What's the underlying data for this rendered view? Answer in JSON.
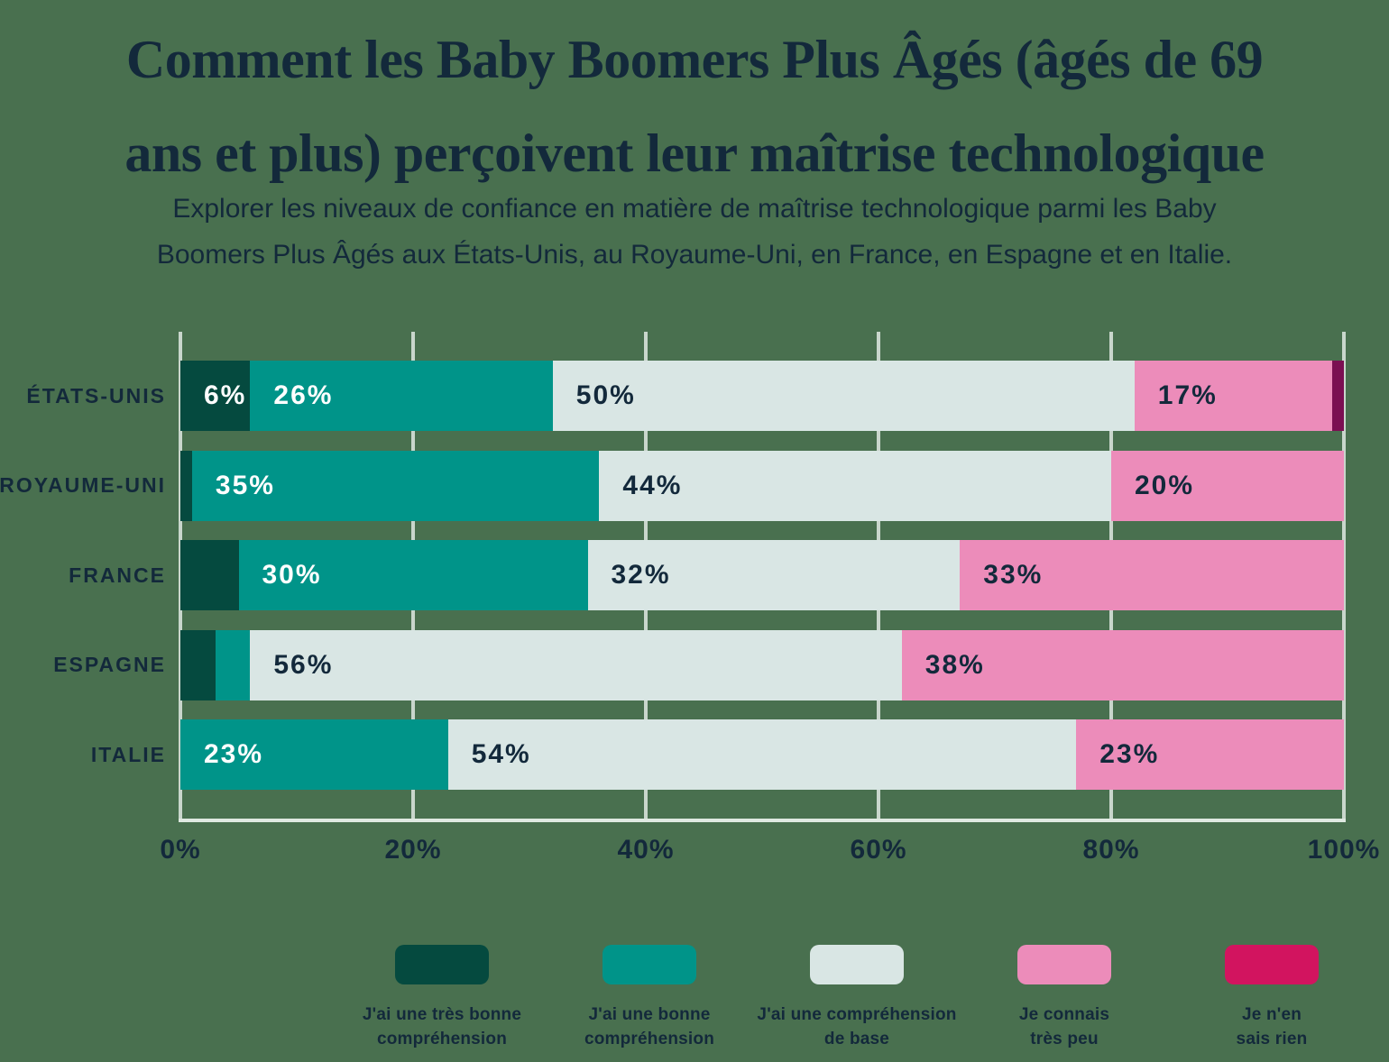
{
  "page": {
    "background_color": "#49704F",
    "text_color": "#13293B",
    "gridline_color": "#C9D6CC",
    "axis_line_color": "#DFE9E1"
  },
  "header": {
    "title": "Comment les Baby Boomers Plus Âgés (âgés de 69\nans et plus) perçoivent leur maîtrise technologique",
    "subtitle": "Explorer les niveaux de confiance en matière de maîtrise technologique parmi les Baby\nBoomers Plus Âgés aux États-Unis, au Royaume-Uni, en France, en Espagne et en Italie."
  },
  "chart_data": {
    "type": "bar",
    "orientation": "horizontal",
    "stacked": true,
    "title": "Comment les Baby Boomers Plus Âgés (âgés de 69 ans et plus) perçoivent leur maîtrise technologique",
    "xlabel": "",
    "ylabel": "",
    "xlim": [
      0,
      100
    ],
    "grid": true,
    "legend_position": "bottom",
    "categories": [
      "ÉTATS-UNIS",
      "ROYAUME-UNI",
      "FRANCE",
      "ESPAGNE",
      "ITALIE"
    ],
    "x_ticks": [
      "0%",
      "20%",
      "40%",
      "60%",
      "80%",
      "100%"
    ],
    "series": [
      {
        "name": "J'ai une très bonne compréhension",
        "color": "#054A3F",
        "label_color": "#FFFFFF",
        "values": [
          6,
          1,
          5,
          3,
          0
        ],
        "labels": [
          "6%",
          "",
          "",
          "",
          ""
        ]
      },
      {
        "name": "J'ai une bonne compréhension",
        "color": "#009489",
        "label_color": "#FFFFFF",
        "values": [
          26,
          35,
          30,
          3,
          23
        ],
        "labels": [
          "26%",
          "35%",
          "30%",
          "",
          "23%"
        ]
      },
      {
        "name": "J'ai une compréhension de base",
        "color": "#D9E6E4",
        "label_color": "#13293B",
        "values": [
          50,
          44,
          32,
          56,
          54
        ],
        "labels": [
          "50%",
          "44%",
          "32%",
          "56%",
          "54%"
        ]
      },
      {
        "name": "Je connais très peu",
        "color": "#EC8CBA",
        "label_color": "#13293B",
        "values": [
          17,
          20,
          33,
          38,
          23
        ],
        "labels": [
          "17%",
          "20%",
          "33%",
          "38%",
          "23%"
        ]
      },
      {
        "name": "Je n'en sais rien",
        "color": "#7B0F52",
        "label_color": "#FFFFFF",
        "values": [
          1,
          0,
          0,
          0,
          0
        ],
        "labels": [
          "",
          "",
          "",
          "",
          ""
        ]
      }
    ],
    "legend": [
      {
        "label": "J'ai une très bonne\ncompréhension",
        "color": "#054A3F"
      },
      {
        "label": "J'ai une bonne\ncompréhension",
        "color": "#009489"
      },
      {
        "label": "J'ai une compréhension\nde base",
        "color": "#D9E6E4"
      },
      {
        "label": "Je connais\ntrès peu",
        "color": "#EC8CBA"
      },
      {
        "label": "Je n'en\nsais rien",
        "color": "#D2145F"
      }
    ]
  }
}
